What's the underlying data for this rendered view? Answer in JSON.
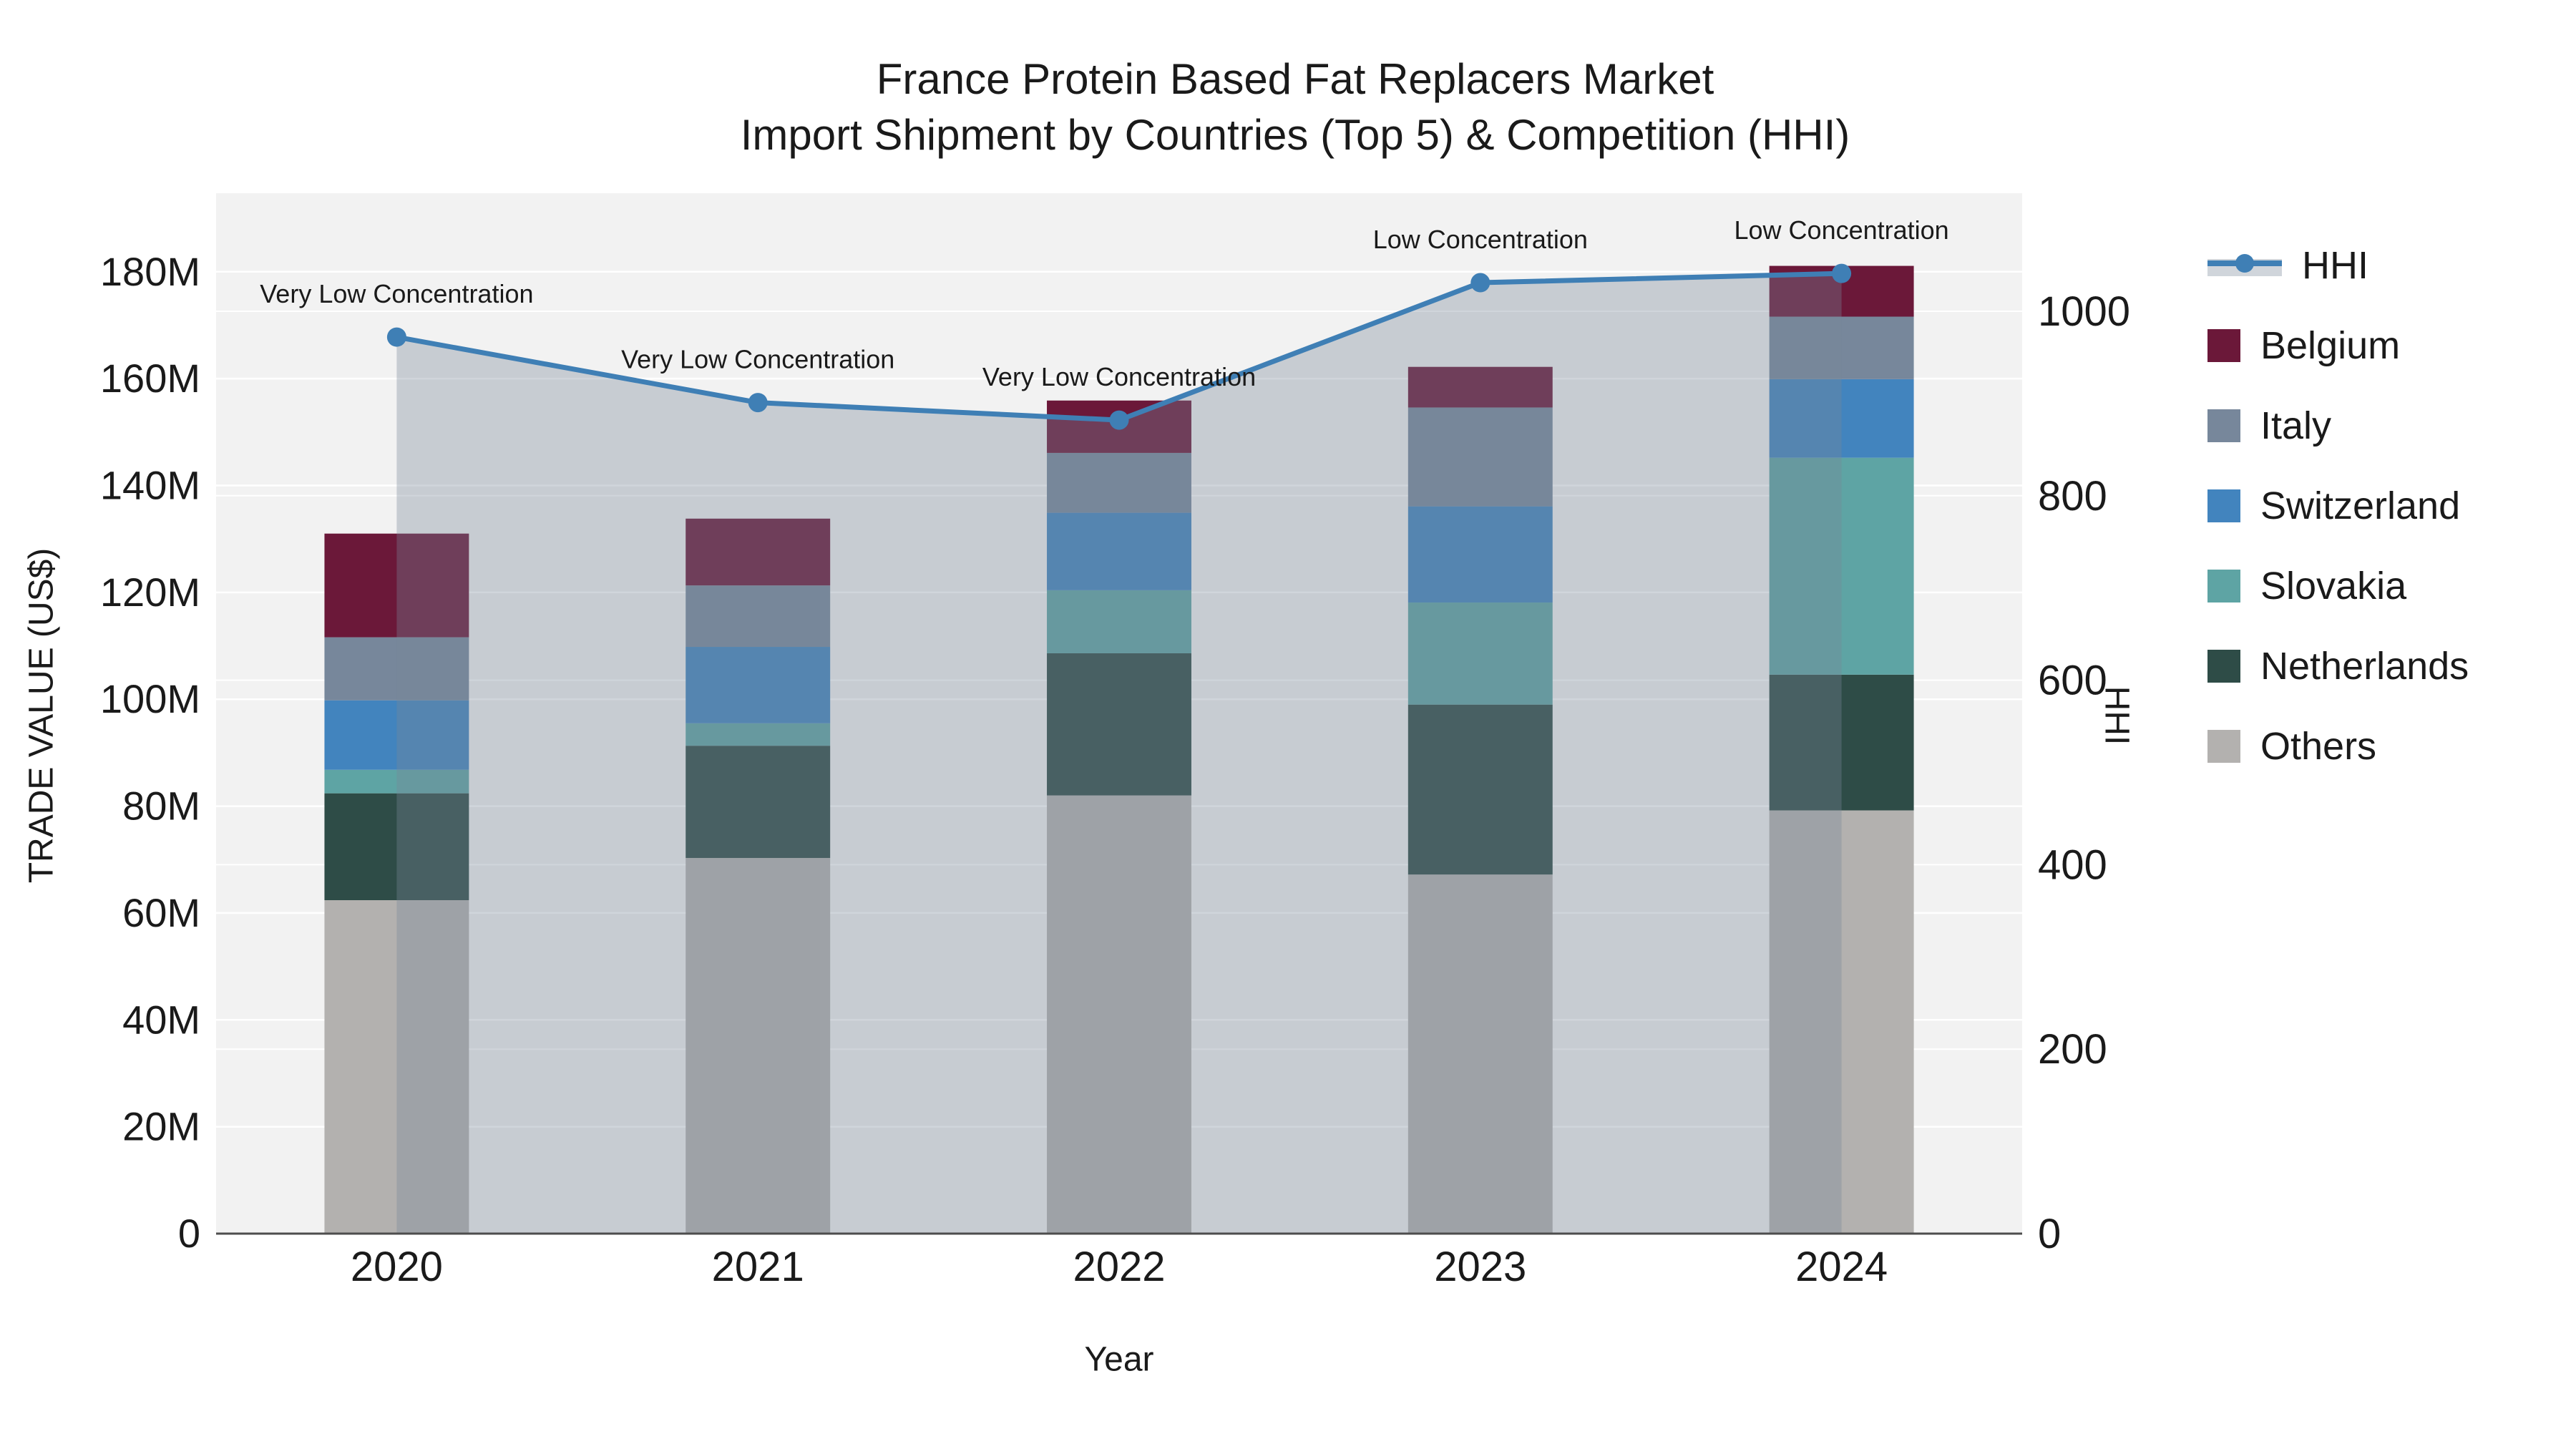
{
  "title": {
    "line1": "France Protein Based Fat Replacers Market",
    "line2": "Import Shipment by Countries (Top 5) & Competition (HHI)"
  },
  "axes": {
    "x": {
      "title": "Year",
      "tick_labels": [
        "2020",
        "2021",
        "2022",
        "2023",
        "2024"
      ]
    },
    "y_left": {
      "title": "TRADE VALUE (US$)",
      "tick_labels": [
        "0",
        "20M",
        "40M",
        "60M",
        "80M",
        "100M",
        "120M",
        "140M",
        "160M",
        "180M"
      ],
      "tick_values_M": [
        0,
        20,
        40,
        60,
        80,
        100,
        120,
        140,
        160,
        180
      ],
      "range_M": [
        0,
        194.7
      ]
    },
    "y_right": {
      "title": "HHI",
      "tick_labels": [
        "0",
        "200",
        "400",
        "600",
        "800",
        "1000"
      ],
      "tick_values": [
        0,
        200,
        400,
        600,
        800,
        1000
      ],
      "range": [
        0,
        1128
      ]
    }
  },
  "legend": {
    "items": [
      {
        "label": "HHI",
        "type": "line",
        "color": "#3f7fb5",
        "band_color": "rgba(119,136,153,0.35)"
      },
      {
        "label": "Belgium",
        "type": "square",
        "color": "#6b1839"
      },
      {
        "label": "Italy",
        "type": "square",
        "color": "#77879b"
      },
      {
        "label": "Switzerland",
        "type": "square",
        "color": "#4284be"
      },
      {
        "label": "Slovakia",
        "type": "square",
        "color": "#5ea4a4"
      },
      {
        "label": "Netherlands",
        "type": "square",
        "color": "#2e4c47"
      },
      {
        "label": "Others",
        "type": "square",
        "color": "#b3b1af"
      }
    ]
  },
  "chart_data": {
    "type": "stacked_bar_with_line",
    "title": "France Protein Based Fat Replacers Market — Import Shipment by Countries (Top 5) & Competition (HHI)",
    "categories": [
      "2020",
      "2021",
      "2022",
      "2023",
      "2024"
    ],
    "bar_unit": "M US$ (trade value, left axis)",
    "series": [
      {
        "name": "Others",
        "color": "#b3b1af",
        "values": [
          62.4,
          70.3,
          82.0,
          67.2,
          79.2
        ]
      },
      {
        "name": "Netherlands",
        "color": "#2e4c47",
        "values": [
          20.0,
          21.0,
          26.6,
          31.8,
          25.4
        ]
      },
      {
        "name": "Slovakia",
        "color": "#5ea4a4",
        "values": [
          4.4,
          4.2,
          11.8,
          19.1,
          40.6
        ]
      },
      {
        "name": "Switzerland",
        "color": "#4284be",
        "values": [
          13.0,
          14.3,
          14.5,
          18.0,
          14.7
        ]
      },
      {
        "name": "Italy",
        "color": "#77879b",
        "values": [
          11.8,
          11.5,
          11.2,
          18.5,
          11.7
        ]
      },
      {
        "name": "Belgium",
        "color": "#6b1839",
        "values": [
          19.4,
          12.5,
          9.8,
          7.6,
          9.5
        ]
      }
    ],
    "bar_totals_M": [
      131.0,
      133.8,
      155.9,
      162.2,
      181.1
    ],
    "line": {
      "name": "HHI",
      "axis": "y_right",
      "color": "#3f7fb5",
      "fill": "tozeroy",
      "fill_color": "rgba(119,136,153,0.35)",
      "values": [
        972,
        901,
        882,
        1031,
        1041
      ]
    },
    "annotations": [
      {
        "text": "Very Low Concentration",
        "category": "2020"
      },
      {
        "text": "Very Low Concentration",
        "category": "2021"
      },
      {
        "text": "Very Low Concentration",
        "category": "2022"
      },
      {
        "text": "Low Concentration",
        "category": "2023"
      },
      {
        "text": "Low Concentration",
        "category": "2024"
      }
    ],
    "layout": {
      "plot_bg": "#f2f2f2",
      "grid": true,
      "grid_color": "#ffffff",
      "baseline_color": "#4d4d4d",
      "legend_position": "right",
      "bar_slot_fraction": 0.4
    }
  }
}
